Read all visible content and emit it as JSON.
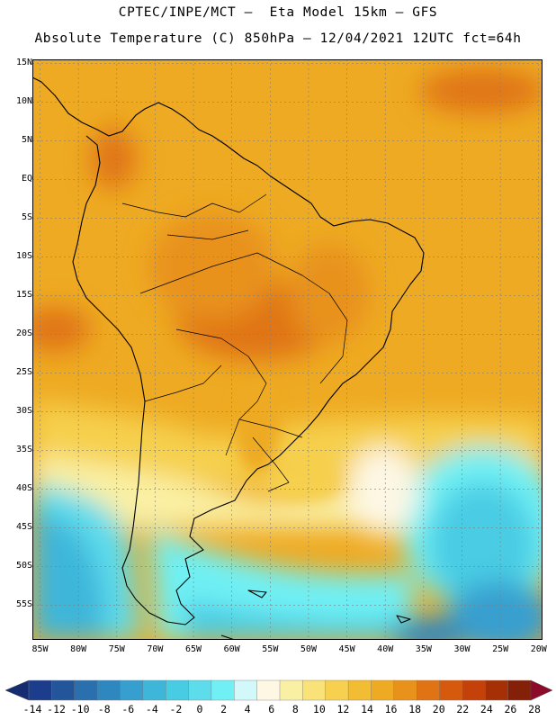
{
  "header": {
    "line1": "CPTEC/INPE/MCT –  Eta Model 15km – GFS",
    "line2": "Absolute Temperature (C) 850hPa – 12/04/2021 12UTC fct=64h"
  },
  "map": {
    "lat_ticks": [
      "15N",
      "10N",
      "5N",
      "EQ",
      "5S",
      "10S",
      "15S",
      "20S",
      "25S",
      "30S",
      "35S",
      "40S",
      "45S",
      "50S",
      "55S"
    ],
    "lon_ticks": [
      "85W",
      "80W",
      "75W",
      "70W",
      "65W",
      "60W",
      "55W",
      "50W",
      "45W",
      "40W",
      "35W",
      "30W",
      "25W",
      "20W"
    ],
    "extent": {
      "lon_min": -86,
      "lon_max": -19.5,
      "lat_min": -59.5,
      "lat_max": 15.5
    }
  },
  "colorbar": {
    "labels": [
      "-14",
      "-12",
      "-10",
      "-8",
      "-6",
      "-4",
      "-2",
      "0",
      "2",
      "4",
      "6",
      "8",
      "10",
      "12",
      "14",
      "16",
      "18",
      "20",
      "22",
      "24",
      "26",
      "28"
    ],
    "colors": [
      "#1c3c8c",
      "#22559a",
      "#2a6fae",
      "#2f87c0",
      "#379fcf",
      "#3eb6da",
      "#48cce4",
      "#5ddcec",
      "#70f0f4",
      "#d2f8fa",
      "#fdf7e4",
      "#faf0a4",
      "#f9e278",
      "#f6d04e",
      "#f2bd32",
      "#eeaa22",
      "#e8921c",
      "#e07414",
      "#d65a0e",
      "#c4420a",
      "#a63006",
      "#842008"
    ],
    "arrow_low": "#152c70",
    "arrow_high": "#8c0a2a"
  }
}
